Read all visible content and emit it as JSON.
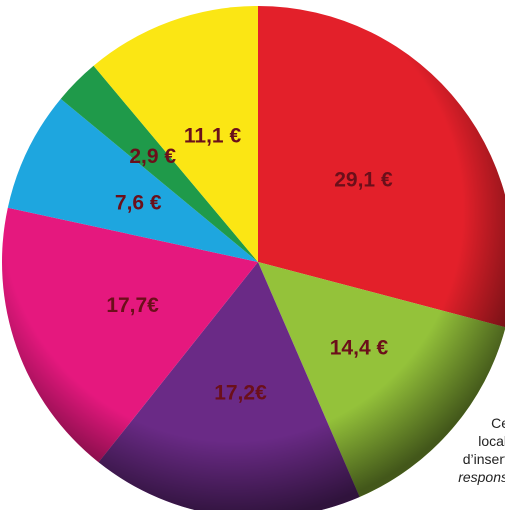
{
  "chart_data": {
    "type": "pie",
    "categories": [
      "29,1 €",
      "14,4 €",
      "17,2€",
      "17,7€",
      "7,6 €",
      "2,9 €",
      "11,1 €"
    ],
    "values": [
      29.1,
      14.4,
      17.2,
      17.7,
      7.6,
      2.9,
      11.1
    ],
    "value_labels": [
      "29,1 €",
      "14,4 €",
      "17,2€",
      "17,7€",
      "7,6 €",
      "2,9 €",
      "11,1 €"
    ],
    "colors": [
      "#e3202a",
      "#94c23a",
      "#6a2a86",
      "#e5187e",
      "#1ea6df",
      "#1f9a4a",
      "#fbe614"
    ]
  },
  "side_text": [
    "p",
    "Ce",
    "local",
    "d’inserti",
    "respons"
  ]
}
